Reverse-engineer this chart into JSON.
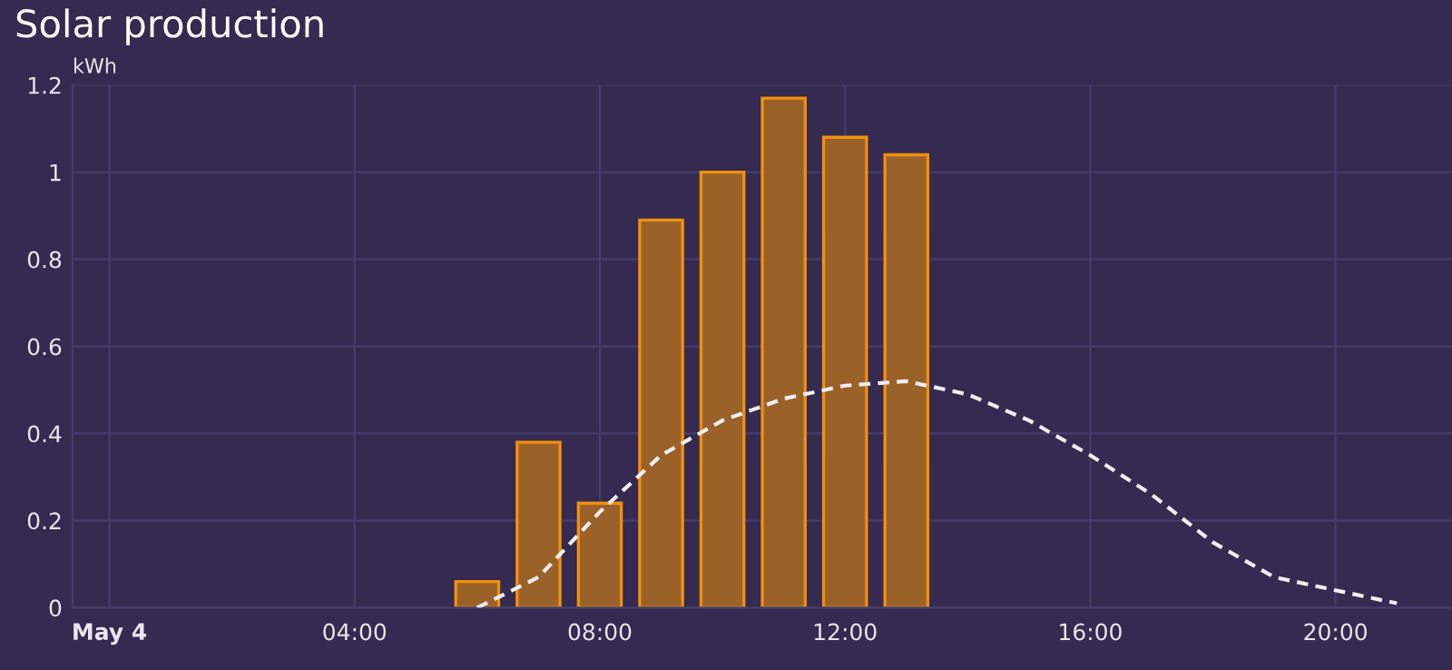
{
  "chart_data": {
    "type": "bar",
    "title": "Solar production",
    "ylabel": "kWh",
    "series": [
      {
        "color": "#9a6229",
        "x": [
          6,
          7,
          8,
          9,
          10,
          11,
          12,
          13
        ],
        "values": [
          0.06,
          0.38,
          0.24,
          0.89,
          1.0,
          1.17,
          1.08,
          1.04
        ]
      },
      {
        "type": "line",
        "color": "#f0eef4",
        "line_style": "dashed",
        "x": [
          6,
          7,
          8,
          9,
          10,
          11,
          12,
          13,
          14,
          15,
          16,
          17,
          18,
          19,
          20,
          21
        ],
        "values": [
          0,
          0.07,
          0.22,
          0.35,
          0.43,
          0.48,
          0.51,
          0.52,
          0.49,
          0.43,
          0.35,
          0.26,
          0.15,
          0.07,
          0.04,
          0.01
        ]
      }
    ],
    "xlim": [
      -0.6,
      21.9
    ],
    "xticks": [
      {
        "value": 0,
        "label": "May 4"
      },
      {
        "value": 4,
        "label": "04:00"
      },
      {
        "value": 8,
        "label": "08:00"
      },
      {
        "value": 12,
        "label": "12:00"
      },
      {
        "value": 16,
        "label": "16:00"
      },
      {
        "value": 20,
        "label": "20:00"
      }
    ],
    "ylim": [
      0,
      1.2
    ],
    "yticks": [
      0,
      0.2,
      0.4,
      0.6,
      0.8,
      1,
      1.2
    ],
    "grid": true,
    "legend": false
  }
}
